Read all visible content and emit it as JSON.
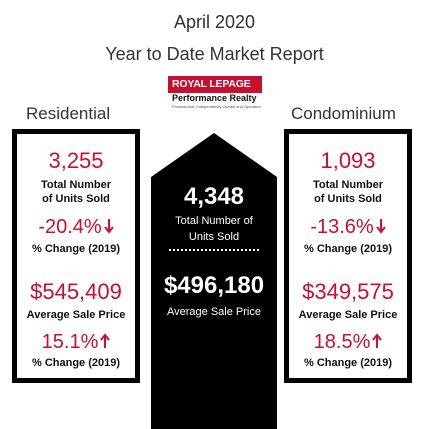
{
  "header": {
    "title_line1": "April 2020",
    "title_line2": "Year to Date Market Report"
  },
  "logo": {
    "brand": "ROYAL LEPAGE",
    "office": "Performance Realty",
    "tagline": "Professional, Independently Owned and Operated",
    "colors": {
      "brand_red": "#c8102e",
      "text": "#111111"
    }
  },
  "residential": {
    "heading": "Residential",
    "units_value": "3,255",
    "units_label_line1": "Total Number",
    "units_label_line2": "of Units Sold",
    "units_change": "-20.4%",
    "units_change_direction": "down",
    "units_change_label": "% Change (2019)",
    "price_value": "$545,409",
    "price_label": "Average Sale Price",
    "price_change": "15.1%",
    "price_change_direction": "up",
    "price_change_label": "% Change (2019)"
  },
  "total": {
    "units_value": "4,348",
    "units_label_line1": "Total Number of",
    "units_label_line2": "Units Sold",
    "price_value": "$496,180",
    "price_label": "Average Sale Price"
  },
  "condominium": {
    "heading": "Condominium",
    "units_value": "1,093",
    "units_label_line1": "Total Number",
    "units_label_line2": "of Units Sold",
    "units_change": "-13.6%",
    "units_change_direction": "down",
    "units_change_label": "% Change (2019)",
    "price_value": "$349,575",
    "price_label": "Average Sale Price",
    "price_change": "18.5%",
    "price_change_direction": "up",
    "price_change_label": "% Change (2019)"
  },
  "colors": {
    "accent_red": "#c8102e",
    "panel_black": "#000000",
    "background": "#ffffff"
  },
  "icons": [
    "arrow-down-icon",
    "arrow-up-icon",
    "house-shape"
  ]
}
